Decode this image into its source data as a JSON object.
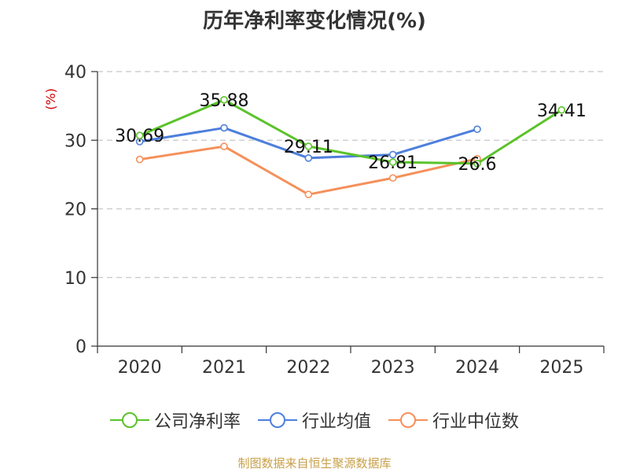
{
  "chart_data": {
    "type": "line",
    "title": "历年净利率变化情况(%)",
    "ylabel": "(%)",
    "xlabel": "",
    "categories": [
      "2020",
      "2021",
      "2022",
      "2023",
      "2024",
      "2025"
    ],
    "ylim": [
      0,
      40
    ],
    "yticks": [
      "0",
      "10",
      "20",
      "30",
      "40"
    ],
    "grid": true,
    "legend_position": "bottom",
    "series": [
      {
        "name": "公司净利率",
        "color": "#5ac32a",
        "values": [
          30.69,
          35.88,
          29.11,
          26.81,
          26.6,
          34.41
        ],
        "labels": [
          "30.69",
          "35.88",
          "29.11",
          "26.81",
          "26.6",
          "34.41"
        ]
      },
      {
        "name": "行业均值",
        "color": "#4e7fdc",
        "values": [
          29.8,
          31.8,
          27.4,
          27.9,
          31.6,
          null
        ]
      },
      {
        "name": "行业中位数",
        "color": "#f5905a",
        "values": [
          27.2,
          29.1,
          22.1,
          24.5,
          27.3,
          null
        ]
      }
    ]
  },
  "footer": {
    "source": "制图数据来自恒生聚源数据库"
  }
}
